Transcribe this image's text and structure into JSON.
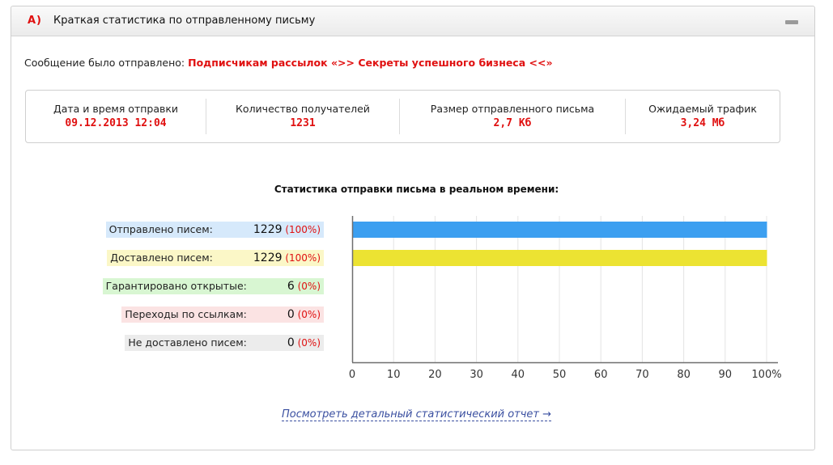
{
  "header": {
    "letter": "А)",
    "title": "Краткая статистика по отправленному письму"
  },
  "sent": {
    "prefix": "Сообщение было отправлено:",
    "target": "Подписчикам рассылок «>> Секреты успешного бизнеса <<»"
  },
  "stats": [
    {
      "label": "Дата и время отправки",
      "value": "09.12.2013 12:04"
    },
    {
      "label": "Количество получателей",
      "value": "1231"
    },
    {
      "label": "Размер отправленного письма",
      "value": "2,7 Кб"
    },
    {
      "label": "Ожидаемый трафик",
      "value": "3,24 Мб"
    }
  ],
  "chart_title": "Статистика отправки письма в реальном времени:",
  "rows": [
    {
      "label": "Отправлено писем:",
      "count": "1229",
      "pct": "(100%)",
      "bg": "#d6e9fb"
    },
    {
      "label": "Доставлено писем:",
      "count": "1229",
      "pct": "(100%)",
      "bg": "#fbf7c7"
    },
    {
      "label": "Гарантировано открытые:",
      "count": "6",
      "pct": "(0%)",
      "bg": "#d8f6d2"
    },
    {
      "label": "Переходы по ссылкам:",
      "count": "0",
      "pct": "(0%)",
      "bg": "#fbe3e3"
    },
    {
      "label": "Не доставлено писем:",
      "count": "0",
      "pct": "(0%)",
      "bg": "#ececec"
    }
  ],
  "chart_data": {
    "type": "bar",
    "orientation": "horizontal",
    "categories": [
      "Отправлено писем:",
      "Доставлено писем:",
      "Гарантировано открытые:",
      "Переходы по ссылкам:",
      "Не доставлено писем:"
    ],
    "values": [
      100,
      100,
      0,
      0,
      0
    ],
    "colors": [
      "#3c9ff0",
      "#ece332",
      "#55cc44",
      "#e86a6a",
      "#9a9a9a"
    ],
    "xlim": [
      0,
      100
    ],
    "xticks": [
      "0",
      "10",
      "20",
      "30",
      "40",
      "50",
      "60",
      "70",
      "80",
      "90",
      "100%"
    ],
    "grid": true
  },
  "report_link": "Посмотреть детальный статистический отчет →"
}
